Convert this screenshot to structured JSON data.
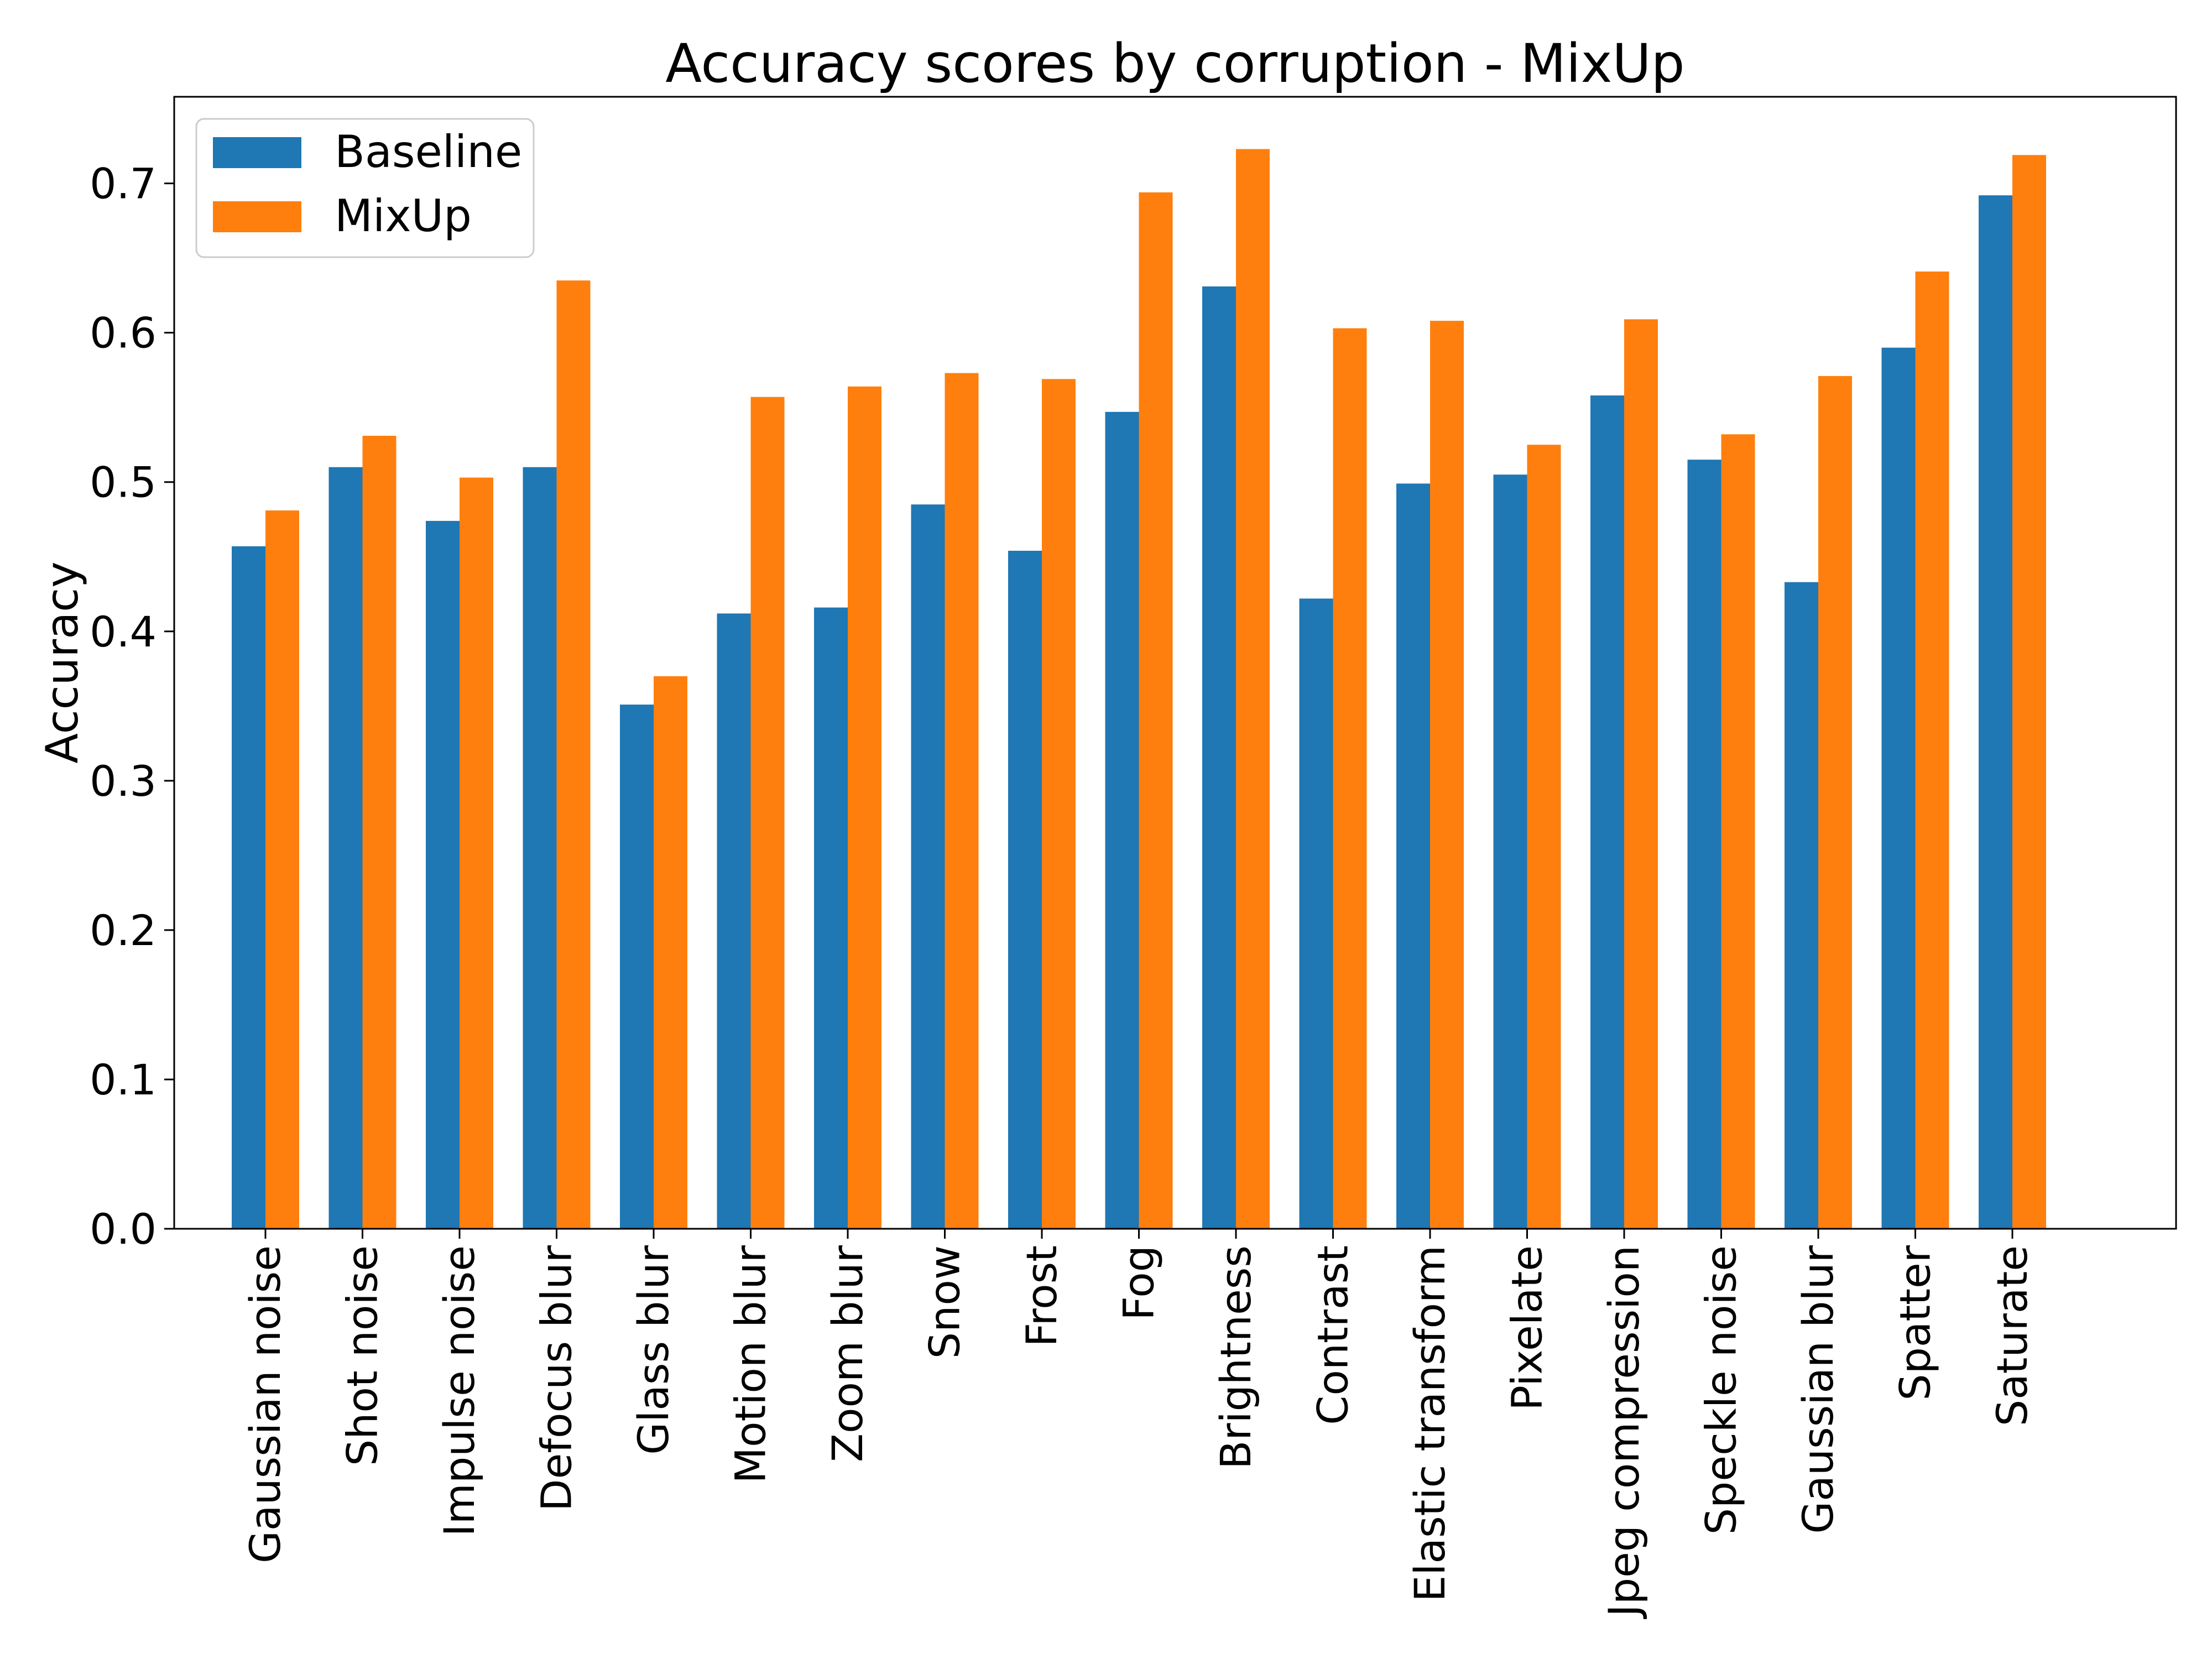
{
  "chart_data": {
    "type": "bar",
    "title": "Accuracy scores by corruption - MixUp",
    "xlabel": "",
    "ylabel": "Accuracy",
    "ylim": [
      0,
      0.758
    ],
    "yticks": [
      "0.0",
      "0.1",
      "0.2",
      "0.3",
      "0.4",
      "0.5",
      "0.6",
      "0.7"
    ],
    "grid": false,
    "legend_position": "top-left",
    "categories": [
      "Gaussian noise",
      "Shot noise",
      "Impulse noise",
      "Defocus blur",
      "Glass blur",
      "Motion blur",
      "Zoom blur",
      "Snow",
      "Frost",
      "Fog",
      "Brightness",
      "Contrast",
      "Elastic transform",
      "Pixelate",
      "Jpeg compression",
      "Speckle noise",
      "Gaussian blur",
      "Spatter",
      "Saturate"
    ],
    "series": [
      {
        "name": "Baseline",
        "color": "#1f77b4",
        "values": [
          0.457,
          0.51,
          0.474,
          0.51,
          0.351,
          0.412,
          0.416,
          0.485,
          0.454,
          0.547,
          0.631,
          0.422,
          0.499,
          0.505,
          0.558,
          0.515,
          0.433,
          0.59,
          0.692
        ]
      },
      {
        "name": "MixUp",
        "color": "#ff7f0e",
        "values": [
          0.481,
          0.531,
          0.503,
          0.635,
          0.37,
          0.557,
          0.564,
          0.573,
          0.569,
          0.694,
          0.723,
          0.603,
          0.608,
          0.525,
          0.609,
          0.532,
          0.571,
          0.641,
          0.719
        ]
      }
    ]
  }
}
